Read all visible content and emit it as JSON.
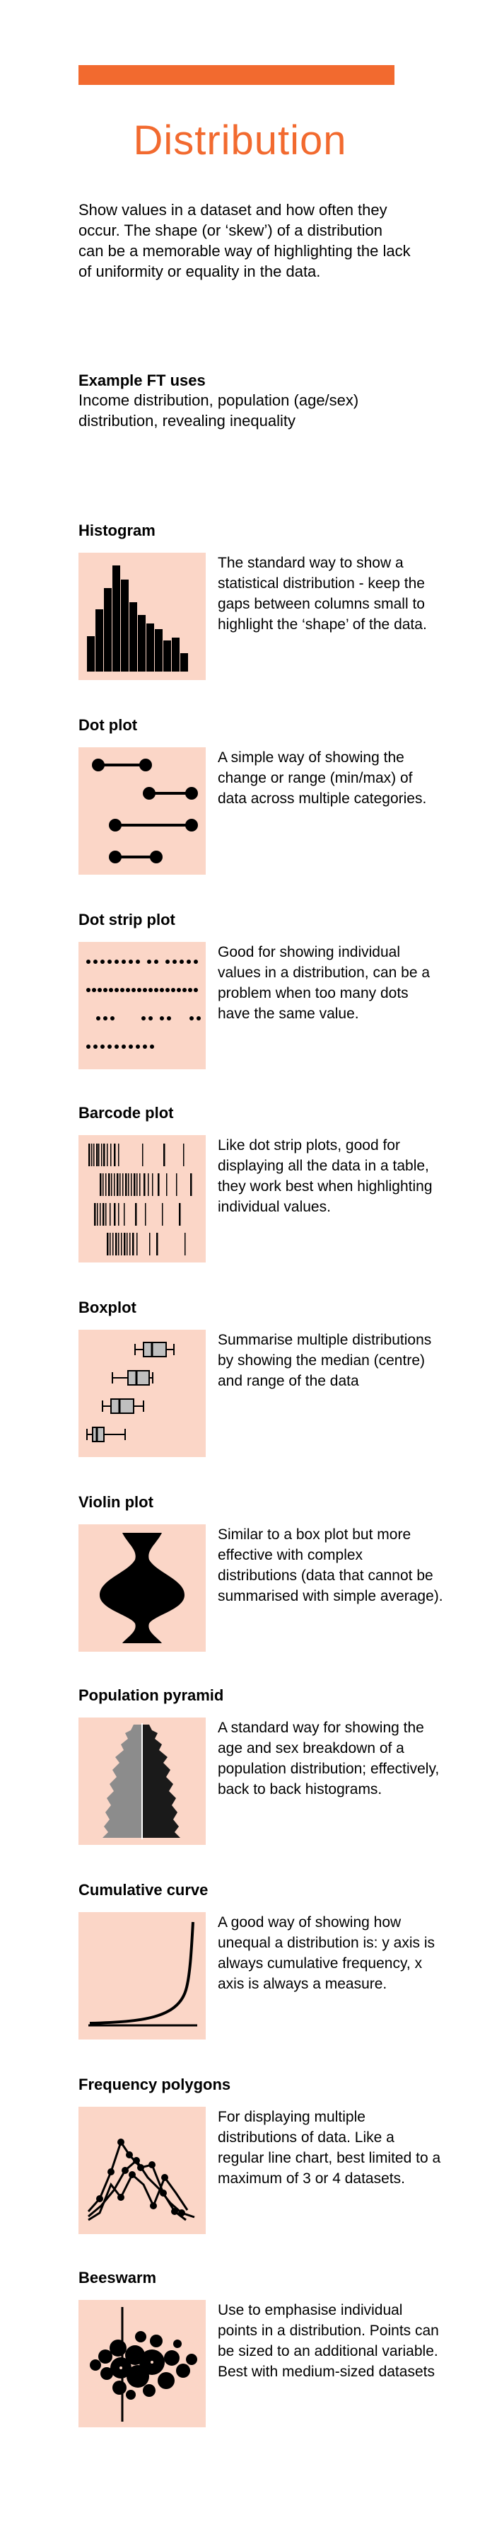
{
  "header": {
    "accent_color": "#f26a2f",
    "title": "Distribution",
    "intro": "Show values in a dataset and how often they occur. The shape (or ‘skew’) of a distribution can be a memorable way of highlighting the lack of uniformity or equality in the data."
  },
  "example_uses": {
    "title": "Example FT uses",
    "text": "Income distribution, population (age/sex) distribution, revealing inequality"
  },
  "thumb_bg": "#fbd6c7",
  "charts": [
    {
      "title": "Histogram",
      "description": "The standard way to show a statistical distribution - keep the gaps between columns small to highlight the ‘shape’ of the data."
    },
    {
      "title": "Dot plot",
      "description": "A simple way of showing the change or range (min/max) of data across multiple categories."
    },
    {
      "title": "Dot strip plot",
      "description": "Good for showing individual values in a distribution, can be a problem when too many dots have the same value."
    },
    {
      "title": "Barcode plot",
      "description": "Like dot strip plots, good for displaying all the data in a table, they work best when highlighting individual values."
    },
    {
      "title": "Boxplot",
      "description": "Summarise multiple distributions by showing the median (centre) and range of the data"
    },
    {
      "title": "Violin plot",
      "description": "Similar to a box plot but more effective with complex distributions (data that cannot be summarised with simple average)."
    },
    {
      "title": "Population pyramid",
      "description": "A standard way for showing the age and sex breakdown of a population distribution; effectively, back to back histograms."
    },
    {
      "title": "Cumulative curve",
      "description": "A good way of showing how unequal a distribution is: y axis is always cumulative frequency, x axis is always a measure."
    },
    {
      "title": "Frequency polygons",
      "description": "For displaying multiple distributions of data. Like a regular line chart, best limited to a maximum of 3 or 4 datasets."
    },
    {
      "title": "Beeswarm",
      "description": "Use to emphasise individual points in a distribution. Points can be sized to an additional variable. Best with medium-sized datasets"
    }
  ]
}
